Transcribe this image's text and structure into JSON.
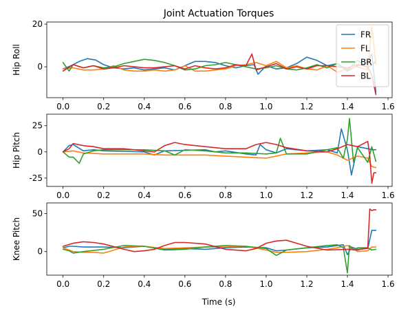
{
  "chart_data": {
    "type": "line",
    "title": "Joint Actuation Torques",
    "xlabel": "Time (s)",
    "xlim": [
      -0.08,
      1.62
    ],
    "xticks": [
      "0.0",
      "0.2",
      "0.4",
      "0.6",
      "0.8",
      "1.0",
      "1.2",
      "1.4",
      "1.6"
    ],
    "legend": {
      "placement": "top-right",
      "subplot": 0
    },
    "series_styles": [
      {
        "name": "FR",
        "color": "#1f77b4"
      },
      {
        "name": "FL",
        "color": "#ff7f0e"
      },
      {
        "name": "BR",
        "color": "#2ca02c"
      },
      {
        "name": "BL",
        "color": "#d62728"
      }
    ],
    "subplots": [
      {
        "ylabel": "Hip Roll",
        "ylim": [
          -14.5,
          21
        ],
        "yticks": [
          0,
          20
        ],
        "series": [
          {
            "name": "FR",
            "x": [
              0.0,
              0.04,
              0.08,
              0.12,
              0.16,
              0.2,
              0.25,
              0.3,
              0.35,
              0.4,
              0.45,
              0.5,
              0.55,
              0.6,
              0.65,
              0.7,
              0.75,
              0.8,
              0.85,
              0.9,
              0.94,
              0.96,
              1.0,
              1.05,
              1.1,
              1.15,
              1.2,
              1.25,
              1.3,
              1.35,
              1.4,
              1.45,
              1.5,
              1.52,
              1.54
            ],
            "y": [
              -1,
              0.5,
              2.5,
              3.8,
              3.2,
              1,
              -0.5,
              -1,
              -0.5,
              -1.5,
              -1,
              -0.5,
              -1.5,
              0.5,
              2.5,
              2.5,
              2,
              0.5,
              -0.5,
              0.5,
              1,
              -3.5,
              0.5,
              -1,
              -0.5,
              1.5,
              4.5,
              3,
              0.5,
              1.5,
              -2,
              0.5,
              2,
              6,
              -12
            ]
          },
          {
            "name": "FL",
            "x": [
              0.0,
              0.05,
              0.1,
              0.15,
              0.2,
              0.25,
              0.3,
              0.35,
              0.4,
              0.45,
              0.5,
              0.55,
              0.6,
              0.65,
              0.7,
              0.75,
              0.8,
              0.85,
              0.9,
              0.95,
              1.0,
              1.05,
              1.1,
              1.15,
              1.2,
              1.25,
              1.3,
              1.35,
              1.4,
              1.45,
              1.5,
              1.52,
              1.54
            ],
            "y": [
              -1,
              -0.5,
              -1.5,
              -1.5,
              -1,
              0.5,
              -1.5,
              -2,
              -2,
              -1.5,
              -2,
              -1.5,
              0.5,
              -2,
              -2,
              -1.5,
              -1,
              0.5,
              1,
              2,
              0.5,
              2.5,
              -0.5,
              0.5,
              -1,
              -1.5,
              0.5,
              -2.5,
              -1,
              0,
              -1.5,
              19,
              1
            ]
          },
          {
            "name": "BR",
            "x": [
              0.0,
              0.03,
              0.05,
              0.1,
              0.15,
              0.2,
              0.25,
              0.3,
              0.35,
              0.4,
              0.45,
              0.5,
              0.55,
              0.6,
              0.65,
              0.7,
              0.75,
              0.8,
              0.85,
              0.9,
              0.95,
              1.0,
              1.05,
              1.1,
              1.15,
              1.2,
              1.25,
              1.3,
              1.35,
              1.4,
              1.45,
              1.5,
              1.54
            ],
            "y": [
              2,
              -2,
              1,
              -0.5,
              0.5,
              -0.5,
              0,
              1.5,
              2.5,
              3.5,
              3,
              2,
              0.5,
              -1.5,
              -1,
              0.5,
              1,
              2,
              1,
              0,
              -1,
              -0.5,
              0.5,
              -1,
              -1.5,
              -0.5,
              1,
              -0.5,
              1.5,
              -1.5,
              3,
              -0.5,
              2.5
            ]
          },
          {
            "name": "BL",
            "x": [
              0.0,
              0.05,
              0.1,
              0.15,
              0.2,
              0.25,
              0.3,
              0.35,
              0.4,
              0.45,
              0.5,
              0.55,
              0.6,
              0.65,
              0.7,
              0.75,
              0.8,
              0.85,
              0.9,
              0.93,
              0.95,
              1.0,
              1.05,
              1.1,
              1.15,
              1.2,
              1.25,
              1.3,
              1.35,
              1.4,
              1.45,
              1.5,
              1.52,
              1.54
            ],
            "y": [
              -2,
              1,
              -0.5,
              0.5,
              -1,
              -0.5,
              0.5,
              0,
              -0.5,
              -0.5,
              0,
              0.5,
              -1,
              0.5,
              -0.5,
              -1,
              -0.5,
              1,
              0.5,
              6,
              -1.5,
              0,
              1.5,
              -1,
              0,
              -1,
              0.5,
              0.5,
              0,
              -0.5,
              1,
              0,
              -4,
              -13
            ]
          }
        ]
      },
      {
        "ylabel": "Hip Pitch",
        "ylim": [
          -33,
          36
        ],
        "yticks": [
          -25,
          0,
          25
        ],
        "series": [
          {
            "name": "FR",
            "x": [
              0.0,
              0.03,
              0.05,
              0.1,
              0.15,
              0.2,
              0.3,
              0.4,
              0.45,
              0.5,
              0.6,
              0.7,
              0.75,
              0.8,
              0.9,
              0.95,
              0.97,
              1.0,
              1.05,
              1.1,
              1.2,
              1.3,
              1.35,
              1.37,
              1.4,
              1.42,
              1.45,
              1.5,
              1.52,
              1.54
            ],
            "y": [
              0,
              6,
              7,
              1,
              2,
              1,
              0.5,
              0,
              -3,
              1,
              1.5,
              2,
              0,
              1,
              -2,
              -3,
              7,
              2,
              -1,
              3,
              1,
              2,
              -1,
              22,
              2,
              -22,
              5,
              3,
              2,
              2
            ]
          },
          {
            "name": "FL",
            "x": [
              0.0,
              0.05,
              0.1,
              0.2,
              0.3,
              0.4,
              0.5,
              0.6,
              0.7,
              0.8,
              0.9,
              1.0,
              1.05,
              1.1,
              1.2,
              1.3,
              1.35,
              1.4,
              1.45,
              1.5,
              1.52,
              1.54
            ],
            "y": [
              0,
              1,
              -1,
              -2,
              -2,
              -2,
              -3,
              -3,
              -3,
              -4,
              -5,
              -6,
              -4,
              -2,
              -1,
              0,
              -3,
              -8,
              -4,
              -6,
              -14,
              -15
            ]
          },
          {
            "name": "BR",
            "x": [
              0.0,
              0.03,
              0.05,
              0.08,
              0.1,
              0.15,
              0.2,
              0.3,
              0.4,
              0.5,
              0.55,
              0.6,
              0.7,
              0.8,
              0.9,
              1.0,
              1.05,
              1.07,
              1.1,
              1.2,
              1.3,
              1.35,
              1.38,
              1.4,
              1.41,
              1.43,
              1.45,
              1.5,
              1.52,
              1.54
            ],
            "y": [
              0,
              -5,
              -5,
              -11,
              -2,
              1,
              2,
              2,
              2,
              1,
              -3,
              2,
              1,
              -1,
              -1,
              -2,
              -1,
              13,
              -2,
              -2,
              2,
              4,
              -6,
              12,
              32,
              -10,
              4,
              -10,
              5,
              -9
            ]
          },
          {
            "name": "BL",
            "x": [
              0.0,
              0.03,
              0.05,
              0.1,
              0.15,
              0.2,
              0.3,
              0.4,
              0.45,
              0.5,
              0.55,
              0.6,
              0.7,
              0.8,
              0.9,
              0.95,
              1.0,
              1.05,
              1.1,
              1.2,
              1.3,
              1.35,
              1.4,
              1.45,
              1.5,
              1.51,
              1.52,
              1.53,
              1.54
            ],
            "y": [
              0,
              3,
              8,
              6,
              5,
              3,
              3,
              1,
              0,
              6,
              9,
              7,
              5,
              3,
              3,
              7,
              9,
              7,
              4,
              1,
              0,
              3,
              7,
              5,
              10,
              -4,
              -30,
              -20,
              -20
            ]
          }
        ]
      },
      {
        "ylabel": "Knee Pitch",
        "ylim": [
          -31,
          64
        ],
        "yticks": [
          0,
          50
        ],
        "series": [
          {
            "name": "FR",
            "x": [
              0.0,
              0.03,
              0.05,
              0.1,
              0.2,
              0.3,
              0.4,
              0.5,
              0.6,
              0.7,
              0.8,
              0.9,
              1.0,
              1.05,
              1.1,
              1.2,
              1.3,
              1.35,
              1.38,
              1.4,
              1.42,
              1.45,
              1.5,
              1.52,
              1.54
            ],
            "y": [
              5,
              7,
              7,
              6,
              6,
              5,
              7,
              3,
              4,
              3,
              5,
              6,
              5,
              1,
              2,
              5,
              6,
              8,
              9,
              -4,
              6,
              3,
              4,
              28,
              28
            ]
          },
          {
            "name": "FL",
            "x": [
              0.0,
              0.05,
              0.1,
              0.15,
              0.2,
              0.3,
              0.4,
              0.5,
              0.6,
              0.7,
              0.8,
              0.9,
              1.0,
              1.05,
              1.1,
              1.2,
              1.3,
              1.35,
              1.4,
              1.45,
              1.5,
              1.52,
              1.54
            ],
            "y": [
              5,
              0,
              -1,
              -1,
              -2,
              6,
              7,
              4,
              5,
              6,
              6,
              7,
              2,
              -1,
              -1,
              0,
              3,
              5,
              8,
              0,
              1,
              6,
              6
            ]
          },
          {
            "name": "BR",
            "x": [
              0.0,
              0.03,
              0.05,
              0.1,
              0.2,
              0.3,
              0.4,
              0.5,
              0.6,
              0.7,
              0.8,
              0.9,
              1.0,
              1.05,
              1.1,
              1.2,
              1.3,
              1.35,
              1.38,
              1.4,
              1.41,
              1.43,
              1.45,
              1.5,
              1.52,
              1.54
            ],
            "y": [
              3,
              1,
              -2,
              0,
              3,
              8,
              7,
              2,
              3,
              6,
              8,
              7,
              4,
              -5,
              2,
              5,
              8,
              9,
              5,
              -28,
              8,
              2,
              5,
              5,
              2,
              3
            ]
          },
          {
            "name": "BL",
            "x": [
              0.0,
              0.05,
              0.1,
              0.15,
              0.2,
              0.3,
              0.35,
              0.4,
              0.45,
              0.5,
              0.55,
              0.6,
              0.7,
              0.8,
              0.9,
              0.95,
              1.0,
              1.05,
              1.1,
              1.15,
              1.2,
              1.3,
              1.4,
              1.45,
              1.5,
              1.51,
              1.52,
              1.53,
              1.54
            ],
            "y": [
              7,
              11,
              13,
              12,
              10,
              3,
              0,
              1,
              3,
              8,
              12,
              12,
              10,
              3,
              1,
              4,
              11,
              14,
              15,
              11,
              7,
              2,
              3,
              2,
              5,
              56,
              54,
              55,
              55
            ]
          }
        ]
      }
    ]
  }
}
